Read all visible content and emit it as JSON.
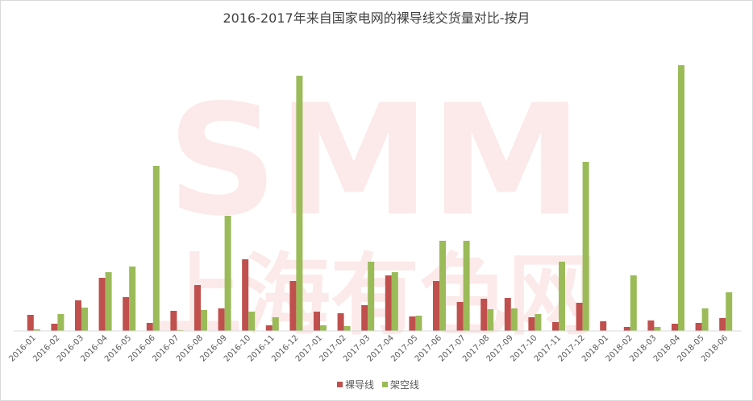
{
  "chart_data": {
    "type": "bar",
    "title": "2016-2017年来自国家电网的裸导线交货量对比-按月",
    "watermark": [
      "SMM",
      "上海有色网"
    ],
    "categories": [
      "2016-01",
      "2016-02",
      "2016-03",
      "2016-04",
      "2016-05",
      "2016-06",
      "2016-07",
      "2016-08",
      "2016-09",
      "2016-10",
      "2016-11",
      "2016-12",
      "2017-01",
      "2017-02",
      "2017-03",
      "2017-04",
      "2017-05",
      "2017-06",
      "2017-07",
      "2017-08",
      "2017-09",
      "2017-10",
      "2017-11",
      "2017-12",
      "2018-01",
      "2018-02",
      "2018-03",
      "2018-04",
      "2018-05",
      "2018-06"
    ],
    "series": [
      {
        "name": "裸导线",
        "color": "#c0504d",
        "values": [
          20,
          9,
          38,
          66,
          42,
          10,
          25,
          57,
          28,
          89,
          7,
          62,
          24,
          22,
          32,
          69,
          18,
          62,
          36,
          40,
          41,
          17,
          11,
          35,
          12,
          5,
          13,
          9,
          10,
          16
        ]
      },
      {
        "name": "架空线",
        "color": "#9bbb59",
        "values": [
          2,
          21,
          29,
          73,
          80,
          205,
          1,
          26,
          143,
          24,
          17,
          317,
          7,
          6,
          86,
          73,
          19,
          112,
          112,
          27,
          28,
          21,
          86,
          210,
          0,
          69,
          5,
          330,
          28,
          48
        ]
      }
    ],
    "ylim": [
      0,
      330
    ],
    "legend": "bottom"
  }
}
